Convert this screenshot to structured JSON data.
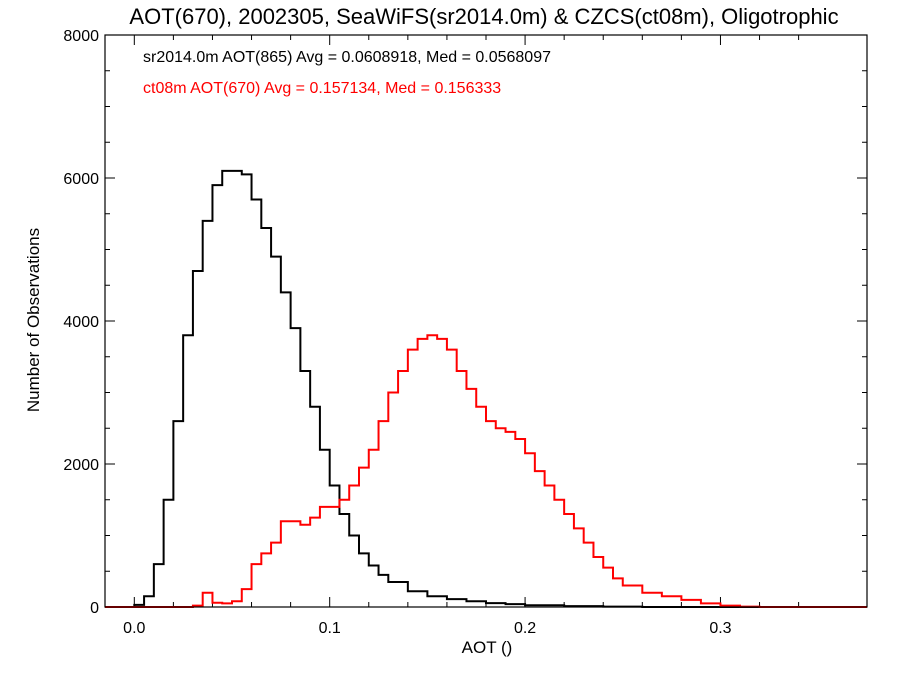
{
  "chart_data": {
    "type": "line",
    "title": "AOT(670), 2002305, SeaWiFS(sr2014.0m) & CZCS(ct08m), Oligotrophic",
    "xlabel": "AOT ()",
    "ylabel": "Number of Observations",
    "xlim": [
      -0.015,
      0.375
    ],
    "ylim": [
      0,
      8000
    ],
    "x_ticks": [
      0.0,
      0.1,
      0.2,
      0.3
    ],
    "x_tick_labels": [
      "0.0",
      "0.1",
      "0.2",
      "0.3"
    ],
    "y_ticks": [
      0,
      2000,
      4000,
      6000,
      8000
    ],
    "y_tick_labels": [
      "0",
      "2000",
      "4000",
      "6000",
      "8000"
    ],
    "grid": false,
    "annotations": [
      {
        "text": "sr2014.0m AOT(865) Avg = 0.0608918, Med = 0.0568097",
        "color": "#000000"
      },
      {
        "text": "ct08m AOT(670) Avg = 0.157134, Med = 0.156333",
        "color": "#ff0000"
      }
    ],
    "series": [
      {
        "name": "sr2014.0m AOT(865)",
        "color": "#000000",
        "style": "step",
        "x": [
          0.0,
          0.005,
          0.01,
          0.015,
          0.02,
          0.025,
          0.03,
          0.035,
          0.04,
          0.045,
          0.05,
          0.055,
          0.06,
          0.065,
          0.07,
          0.075,
          0.08,
          0.085,
          0.09,
          0.095,
          0.1,
          0.105,
          0.11,
          0.115,
          0.12,
          0.125,
          0.13,
          0.14,
          0.15,
          0.16,
          0.17,
          0.18,
          0.19,
          0.2,
          0.22,
          0.24,
          0.26
        ],
        "y": [
          30,
          150,
          600,
          1500,
          2600,
          3800,
          4700,
          5400,
          5900,
          6100,
          6100,
          6050,
          5700,
          5300,
          4900,
          4400,
          3900,
          3300,
          2800,
          2200,
          1700,
          1300,
          1000,
          750,
          580,
          450,
          350,
          220,
          150,
          110,
          80,
          55,
          40,
          25,
          12,
          5,
          0
        ]
      },
      {
        "name": "ct08m AOT(670)",
        "color": "#ff0000",
        "style": "step",
        "x": [
          0.0,
          0.03,
          0.035,
          0.04,
          0.045,
          0.05,
          0.055,
          0.06,
          0.065,
          0.07,
          0.075,
          0.08,
          0.085,
          0.09,
          0.095,
          0.1,
          0.105,
          0.11,
          0.115,
          0.12,
          0.125,
          0.13,
          0.135,
          0.14,
          0.145,
          0.15,
          0.155,
          0.16,
          0.165,
          0.17,
          0.175,
          0.18,
          0.185,
          0.19,
          0.195,
          0.2,
          0.205,
          0.21,
          0.215,
          0.22,
          0.225,
          0.23,
          0.235,
          0.24,
          0.245,
          0.25,
          0.26,
          0.27,
          0.28,
          0.29,
          0.3,
          0.31,
          0.32
        ],
        "y": [
          0,
          20,
          200,
          60,
          50,
          80,
          250,
          600,
          750,
          900,
          1200,
          1200,
          1150,
          1250,
          1400,
          1400,
          1500,
          1700,
          1950,
          2200,
          2600,
          3000,
          3300,
          3600,
          3750,
          3800,
          3750,
          3600,
          3300,
          3050,
          2800,
          2600,
          2500,
          2450,
          2350,
          2150,
          1900,
          1700,
          1500,
          1300,
          1100,
          900,
          700,
          550,
          400,
          300,
          200,
          150,
          100,
          50,
          20,
          5,
          0
        ]
      }
    ]
  }
}
